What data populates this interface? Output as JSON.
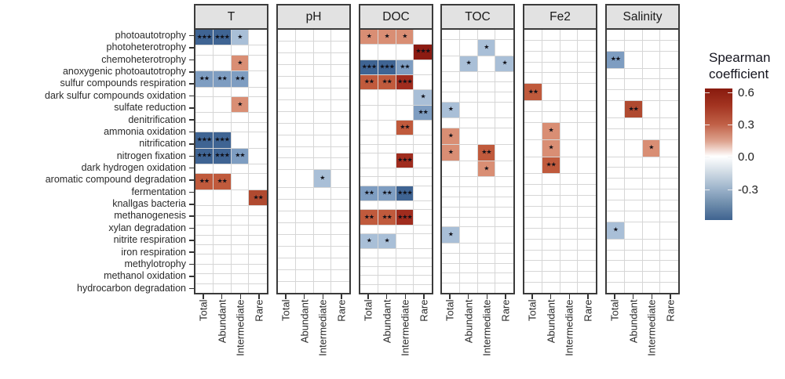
{
  "chart_data": {
    "type": "heatmap",
    "title": "",
    "facets": [
      "T",
      "pH",
      "DOC",
      "TOC",
      "Fe2",
      "Salinity"
    ],
    "columns": [
      "Total",
      "Abundant",
      "Intermediate",
      "Rare"
    ],
    "rows": [
      "photoautotrophy",
      "photoheterotrophy",
      "chemoheterotrophy",
      "anoxygenic photoautotrophy",
      "sulfur compounds respiration",
      "dark sulfur compounds oxidation",
      "sulfate reduction",
      "denitrification",
      "ammonia oxidation",
      "nitrification",
      "nitrogen fixation",
      "dark hydrogen oxidation",
      "aromatic compound degradation",
      "fermentation",
      "knallgas bacteria",
      "methanogenesis",
      "xylan degradation",
      "nitrite respiration",
      "iron respiration",
      "methylotrophy",
      "methanol oxidation",
      "hydrocarbon degradation"
    ],
    "legend": {
      "title_line1": "Spearman",
      "title_line2": "coefficient",
      "ticks": [
        "0.6",
        "0.3",
        "0.0",
        "-0.3"
      ],
      "tick_values": [
        0.6,
        0.3,
        0.0,
        -0.3
      ],
      "bar_domain": [
        0.64,
        -0.6
      ],
      "color_positive_end": "#881a0e",
      "color_zero": "#ffffff",
      "color_negative_end": "#3f6390"
    },
    "cell_palette": {
      "p1": "#d98e74",
      "p2": "#c05a3c",
      "p2d": "#b04a30",
      "p3": "#a02c1e",
      "p3d": "#8c1b12",
      "n1": "#a9bfd7",
      "n2": "#7e9dc1",
      "n3": "#3f6493"
    },
    "cells": {
      "T": [
        {
          "row": "photoautotrophy",
          "col": "Total",
          "stars": "***",
          "value": -0.46,
          "tone": "n3"
        },
        {
          "row": "photoautotrophy",
          "col": "Abundant",
          "stars": "***",
          "value": -0.46,
          "tone": "n3"
        },
        {
          "row": "photoautotrophy",
          "col": "Intermediate",
          "stars": "*",
          "value": -0.24,
          "tone": "n1"
        },
        {
          "row": "chemoheterotrophy",
          "col": "Intermediate",
          "stars": "*",
          "value": 0.3,
          "tone": "p1"
        },
        {
          "row": "anoxygenic photoautotrophy",
          "col": "Total",
          "stars": "**",
          "value": -0.34,
          "tone": "n2"
        },
        {
          "row": "anoxygenic photoautotrophy",
          "col": "Abundant",
          "stars": "**",
          "value": -0.34,
          "tone": "n2"
        },
        {
          "row": "anoxygenic photoautotrophy",
          "col": "Intermediate",
          "stars": "**",
          "value": -0.34,
          "tone": "n2"
        },
        {
          "row": "dark sulfur compounds oxidation",
          "col": "Intermediate",
          "stars": "*",
          "value": 0.3,
          "tone": "p1"
        },
        {
          "row": "ammonia oxidation",
          "col": "Total",
          "stars": "***",
          "value": -0.46,
          "tone": "n3"
        },
        {
          "row": "ammonia oxidation",
          "col": "Abundant",
          "stars": "***",
          "value": -0.46,
          "tone": "n3"
        },
        {
          "row": "nitrification",
          "col": "Total",
          "stars": "***",
          "value": -0.46,
          "tone": "n3"
        },
        {
          "row": "nitrification",
          "col": "Abundant",
          "stars": "***",
          "value": -0.46,
          "tone": "n3"
        },
        {
          "row": "nitrification",
          "col": "Intermediate",
          "stars": "**",
          "value": -0.34,
          "tone": "n2"
        },
        {
          "row": "dark hydrogen oxidation",
          "col": "Total",
          "stars": "**",
          "value": 0.42,
          "tone": "p2"
        },
        {
          "row": "dark hydrogen oxidation",
          "col": "Abundant",
          "stars": "**",
          "value": 0.42,
          "tone": "p2"
        },
        {
          "row": "aromatic compound degradation",
          "col": "Rare",
          "stars": "**",
          "value": 0.46,
          "tone": "p2d"
        }
      ],
      "pH": [
        {
          "row": "aromatic compound degradation",
          "col": "Intermediate",
          "stars": "*",
          "value": -0.24,
          "tone": "n1"
        }
      ],
      "DOC": [
        {
          "row": "photoautotrophy",
          "col": "Total",
          "stars": "*",
          "value": 0.3,
          "tone": "p1"
        },
        {
          "row": "photoautotrophy",
          "col": "Abundant",
          "stars": "*",
          "value": 0.3,
          "tone": "p1"
        },
        {
          "row": "photoautotrophy",
          "col": "Intermediate",
          "stars": "*",
          "value": 0.3,
          "tone": "p1"
        },
        {
          "row": "photoheterotrophy",
          "col": "Rare",
          "stars": "***",
          "value": 0.62,
          "tone": "p3d"
        },
        {
          "row": "chemoheterotrophy",
          "col": "Total",
          "stars": "***",
          "value": -0.46,
          "tone": "n3"
        },
        {
          "row": "chemoheterotrophy",
          "col": "Abundant",
          "stars": "***",
          "value": -0.46,
          "tone": "n3"
        },
        {
          "row": "chemoheterotrophy",
          "col": "Intermediate",
          "stars": "**",
          "value": -0.34,
          "tone": "n2"
        },
        {
          "row": "anoxygenic photoautotrophy",
          "col": "Total",
          "stars": "**",
          "value": 0.42,
          "tone": "p2"
        },
        {
          "row": "anoxygenic photoautotrophy",
          "col": "Abundant",
          "stars": "**",
          "value": 0.42,
          "tone": "p2"
        },
        {
          "row": "anoxygenic photoautotrophy",
          "col": "Intermediate",
          "stars": "***",
          "value": 0.55,
          "tone": "p3"
        },
        {
          "row": "sulfur compounds respiration",
          "col": "Rare",
          "stars": "*",
          "value": -0.24,
          "tone": "n1"
        },
        {
          "row": "dark sulfur compounds oxidation",
          "col": "Rare",
          "stars": "**",
          "value": -0.34,
          "tone": "n2"
        },
        {
          "row": "sulfate reduction",
          "col": "Intermediate",
          "stars": "**",
          "value": 0.42,
          "tone": "p2"
        },
        {
          "row": "nitrification",
          "col": "Intermediate",
          "stars": "***",
          "value": 0.55,
          "tone": "p3"
        },
        {
          "row": "aromatic compound degradation",
          "col": "Total",
          "stars": "**",
          "value": -0.34,
          "tone": "n2"
        },
        {
          "row": "aromatic compound degradation",
          "col": "Abundant",
          "stars": "**",
          "value": -0.34,
          "tone": "n2"
        },
        {
          "row": "aromatic compound degradation",
          "col": "Intermediate",
          "stars": "***",
          "value": -0.46,
          "tone": "n3"
        },
        {
          "row": "knallgas bacteria",
          "col": "Total",
          "stars": "**",
          "value": 0.42,
          "tone": "p2"
        },
        {
          "row": "knallgas bacteria",
          "col": "Abundant",
          "stars": "**",
          "value": 0.42,
          "tone": "p2"
        },
        {
          "row": "knallgas bacteria",
          "col": "Intermediate",
          "stars": "***",
          "value": 0.55,
          "tone": "p3"
        },
        {
          "row": "xylan degradation",
          "col": "Total",
          "stars": "*",
          "value": -0.24,
          "tone": "n1"
        },
        {
          "row": "xylan degradation",
          "col": "Abundant",
          "stars": "*",
          "value": -0.24,
          "tone": "n1"
        }
      ],
      "TOC": [
        {
          "row": "photoheterotrophy",
          "col": "Intermediate",
          "stars": "*",
          "value": -0.25,
          "tone": "n1"
        },
        {
          "row": "chemoheterotrophy",
          "col": "Abundant",
          "stars": "*",
          "value": -0.25,
          "tone": "n1"
        },
        {
          "row": "chemoheterotrophy",
          "col": "Rare",
          "stars": "*",
          "value": -0.25,
          "tone": "n1"
        },
        {
          "row": "sulfate reduction",
          "col": "Total",
          "stars": "*",
          "value": -0.25,
          "tone": "n1"
        },
        {
          "row": "ammonia oxidation",
          "col": "Total",
          "stars": "*",
          "value": 0.32,
          "tone": "p1"
        },
        {
          "row": "nitrification",
          "col": "Total",
          "stars": "*",
          "value": 0.32,
          "tone": "p1"
        },
        {
          "row": "nitrification",
          "col": "Intermediate",
          "stars": "**",
          "value": 0.42,
          "tone": "p2"
        },
        {
          "row": "nitrogen fixation",
          "col": "Intermediate",
          "stars": "*",
          "value": 0.32,
          "tone": "p1"
        },
        {
          "row": "xylan degradation",
          "col": "Total",
          "stars": "*",
          "value": -0.28,
          "tone": "n1"
        }
      ],
      "Fe2": [
        {
          "row": "dark sulfur compounds oxidation",
          "col": "Total",
          "stars": "**",
          "value": 0.42,
          "tone": "p2"
        },
        {
          "row": "ammonia oxidation",
          "col": "Abundant",
          "stars": "*",
          "value": 0.32,
          "tone": "p1"
        },
        {
          "row": "nitrification",
          "col": "Abundant",
          "stars": "*",
          "value": 0.32,
          "tone": "p1"
        },
        {
          "row": "nitrogen fixation",
          "col": "Abundant",
          "stars": "**",
          "value": 0.4,
          "tone": "p2"
        }
      ],
      "Salinity": [
        {
          "row": "chemoheterotrophy",
          "col": "Total",
          "stars": "**",
          "value": -0.35,
          "tone": "n2"
        },
        {
          "row": "sulfate reduction",
          "col": "Abundant",
          "stars": "**",
          "value": 0.46,
          "tone": "p2d"
        },
        {
          "row": "nitrification",
          "col": "Intermediate",
          "stars": "*",
          "value": 0.32,
          "tone": "p1"
        },
        {
          "row": "xylan degradation",
          "col": "Total",
          "stars": "*",
          "value": -0.28,
          "tone": "n1"
        }
      ]
    }
  }
}
